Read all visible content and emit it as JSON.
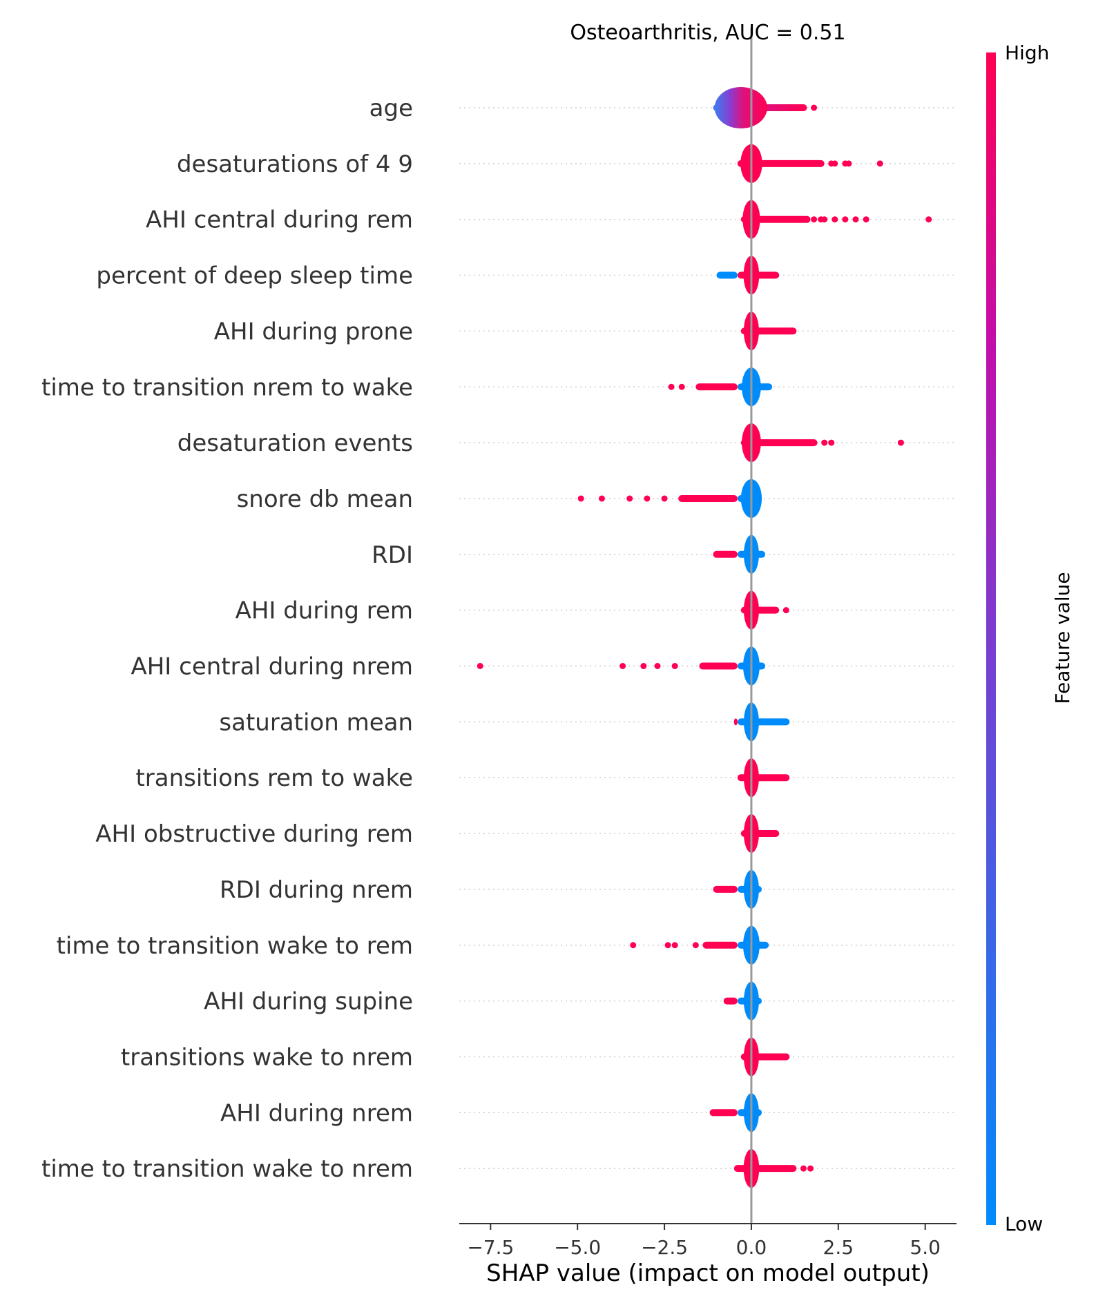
{
  "chart_data": {
    "type": "scatter",
    "subtype": "shap-violin-summary",
    "title": "Osteoarthritis, AUC =  0.51",
    "xlabel": "SHAP value (impact on model output)",
    "xlim": [
      -8.4,
      5.9
    ],
    "xticks": [
      -7.5,
      -5.0,
      -2.5,
      0.0,
      2.5,
      5.0
    ],
    "xtick_labels": [
      "−7.5",
      "−5.0",
      "−2.5",
      "0.0",
      "2.5",
      "5.0"
    ],
    "grid": false,
    "zero_line": true,
    "colorbar": {
      "label": "Feature value",
      "high_label": "High",
      "low_label": "Low",
      "high_color": "#ff0052",
      "mid_color": "#c20eab",
      "low_color": "#008bfb"
    },
    "features": [
      {
        "name": "age",
        "dense_range": [
          -1.1,
          1.6
        ],
        "dense_color": "grad-blue-red",
        "outliers": [
          1.8
        ],
        "outlier_color": "#ff0052"
      },
      {
        "name": "desaturations of 4 9",
        "dense_range": [
          -0.4,
          2.1
        ],
        "dense_color": "#ff0052",
        "outliers": [
          2.3,
          2.4,
          2.7,
          2.8,
          3.7
        ],
        "outlier_color": "#ff0052"
      },
      {
        "name": "AHI central during rem",
        "dense_range": [
          -0.3,
          1.7
        ],
        "dense_color": "#ff0052",
        "outliers": [
          1.8,
          2.0,
          2.1,
          2.4,
          2.7,
          3.0,
          3.3,
          5.1
        ],
        "outlier_color": "#ff0052"
      },
      {
        "name": "percent of deep sleep time",
        "dense_range": [
          -1.0,
          0.8
        ],
        "dense_color": "#ff0052",
        "outliers": [],
        "outlier_color": "#ff0052",
        "left_color": "#008bfb"
      },
      {
        "name": "AHI during prone",
        "dense_range": [
          -0.3,
          1.3
        ],
        "dense_color": "#ff0052",
        "outliers": [],
        "outlier_color": "#ff0052"
      },
      {
        "name": "time to transition nrem to wake",
        "dense_range": [
          -1.6,
          0.6
        ],
        "dense_color": "#008bfb",
        "outliers": [
          -2.3,
          -2.0
        ],
        "outlier_color": "#ff0052",
        "left_color": "#ff0052"
      },
      {
        "name": "desaturation events",
        "dense_range": [
          -0.3,
          1.9
        ],
        "dense_color": "#ff0052",
        "outliers": [
          2.1,
          2.3,
          4.3
        ],
        "outlier_color": "#ff0052"
      },
      {
        "name": "snore db mean",
        "dense_range": [
          -2.1,
          0.3
        ],
        "dense_color": "#008bfb",
        "outliers": [
          -4.9,
          -4.3,
          -3.5,
          -3.0,
          -2.5
        ],
        "outlier_color": "#ff0052",
        "left_color": "#ff0052"
      },
      {
        "name": "RDI",
        "dense_range": [
          -1.1,
          0.4
        ],
        "dense_color": "#008bfb",
        "outliers": [],
        "outlier_color": "#ff0052",
        "left_color": "#ff0052"
      },
      {
        "name": "AHI during rem",
        "dense_range": [
          -0.3,
          0.8
        ],
        "dense_color": "#ff0052",
        "outliers": [
          1.0
        ],
        "outlier_color": "#ff0052"
      },
      {
        "name": "AHI central during nrem",
        "dense_range": [
          -1.5,
          0.4
        ],
        "dense_color": "#008bfb",
        "outliers": [
          -7.8,
          -3.7,
          -3.1,
          -2.7,
          -2.2
        ],
        "outlier_color": "#ff0052",
        "left_color": "#ff0052"
      },
      {
        "name": "saturation mean",
        "dense_range": [
          -0.5,
          1.1
        ],
        "dense_color": "#008bfb",
        "outliers": [],
        "outlier_color": "#ff0052",
        "left_color": "#ff0052"
      },
      {
        "name": "transitions rem to wake",
        "dense_range": [
          -0.4,
          1.1
        ],
        "dense_color": "#ff0052",
        "outliers": [],
        "outlier_color": "#ff0052"
      },
      {
        "name": "AHI obstructive during rem",
        "dense_range": [
          -0.3,
          0.8
        ],
        "dense_color": "#ff0052",
        "outliers": [],
        "outlier_color": "#ff0052"
      },
      {
        "name": "RDI during nrem",
        "dense_range": [
          -1.1,
          0.3
        ],
        "dense_color": "#008bfb",
        "outliers": [],
        "outlier_color": "#ff0052",
        "left_color": "#ff0052"
      },
      {
        "name": "time to transition wake to rem",
        "dense_range": [
          -1.4,
          0.5
        ],
        "dense_color": "#008bfb",
        "outliers": [
          -3.4,
          -2.4,
          -2.2,
          -1.6
        ],
        "outlier_color": "#ff0052",
        "left_color": "#ff0052"
      },
      {
        "name": "AHI during supine",
        "dense_range": [
          -0.8,
          0.3
        ],
        "dense_color": "#008bfb",
        "outliers": [],
        "outlier_color": "#ff0052",
        "left_color": "#ff0052"
      },
      {
        "name": "transitions wake to nrem",
        "dense_range": [
          -0.3,
          1.1
        ],
        "dense_color": "#ff0052",
        "outliers": [],
        "outlier_color": "#ff0052"
      },
      {
        "name": "AHI during nrem",
        "dense_range": [
          -1.2,
          0.3
        ],
        "dense_color": "#008bfb",
        "outliers": [],
        "outlier_color": "#ff0052",
        "left_color": "#ff0052"
      },
      {
        "name": "time to transition wake to nrem",
        "dense_range": [
          -0.5,
          1.3
        ],
        "dense_color": "#ff0052",
        "outliers": [
          1.5,
          1.7
        ],
        "outlier_color": "#ff0052"
      }
    ]
  }
}
